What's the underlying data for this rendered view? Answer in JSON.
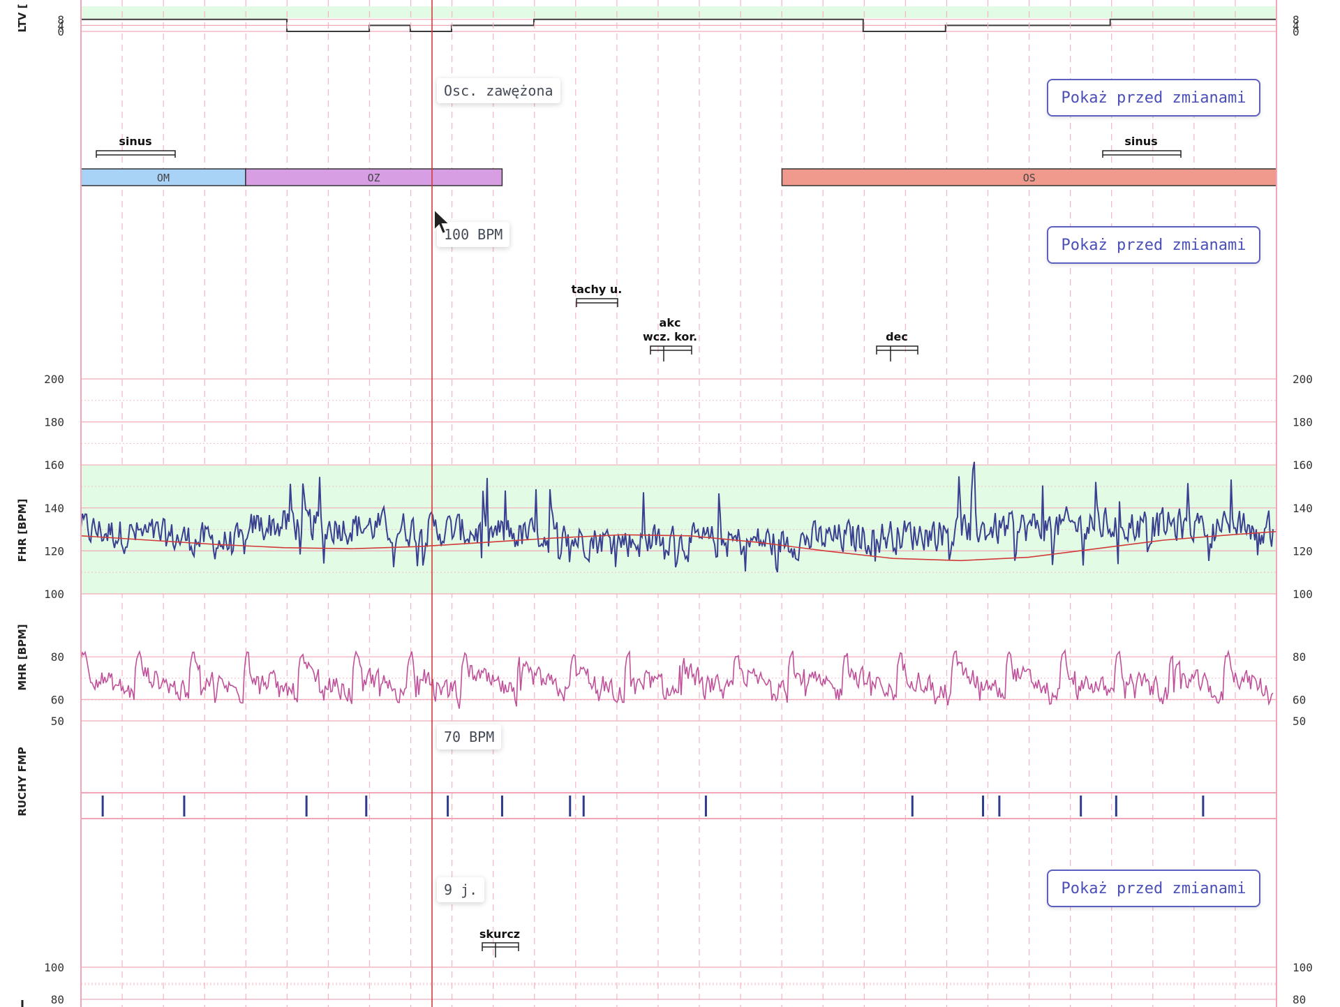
{
  "chart_data": {
    "type": "line",
    "panels": {
      "ltv": {
        "ylabel": "LTV [",
        "ticks": [
          0,
          4,
          8
        ],
        "normal_band": [
          4,
          8
        ],
        "steps": [
          [
            0,
            8
          ],
          [
            7.58,
            8
          ],
          [
            7.58,
            0
          ],
          [
            10.61,
            0
          ],
          [
            10.61,
            4
          ],
          [
            12.12,
            4
          ],
          [
            12.12,
            0
          ],
          [
            13.64,
            0
          ],
          [
            13.64,
            4
          ],
          [
            16.67,
            4
          ],
          [
            16.67,
            8
          ],
          [
            28.79,
            8
          ],
          [
            28.79,
            0
          ],
          [
            31.82,
            0
          ],
          [
            31.82,
            4
          ],
          [
            37.88,
            4
          ],
          [
            37.88,
            8
          ],
          [
            44,
            8
          ]
        ]
      },
      "fhr": {
        "ylabel": "FHR [BPM]",
        "ticks": [
          100,
          120,
          140,
          160,
          180,
          200
        ],
        "ylim": [
          100,
          200
        ],
        "normal_band": [
          100,
          160
        ],
        "baseline": [
          [
            0,
            127
          ],
          [
            3,
            125
          ],
          [
            6,
            123
          ],
          [
            9,
            121.5
          ],
          [
            12,
            121
          ],
          [
            15,
            122
          ],
          [
            18,
            124
          ],
          [
            21,
            126
          ],
          [
            24,
            127.5
          ],
          [
            27,
            127
          ],
          [
            30,
            124
          ],
          [
            33,
            120
          ],
          [
            36,
            116.5
          ],
          [
            39,
            115.5
          ],
          [
            42,
            117
          ],
          [
            45,
            121
          ],
          [
            48,
            125
          ],
          [
            51,
            127.5
          ],
          [
            53,
            129
          ]
        ],
        "series_color": "#3a3f8f",
        "baseline_color": "#d23a3a"
      },
      "mhr": {
        "ylabel": "MHR [BPM]",
        "ticks": [
          50,
          60,
          80
        ],
        "series_color": "#c0509a"
      },
      "fmp": {
        "ylabel": "RUCHY FMP",
        "marks": [
          0.8,
          3.8,
          8.3,
          10.5,
          13.5,
          15.5,
          18.0,
          18.5,
          23.0,
          30.6,
          33.2,
          33.8,
          36.8,
          38.1,
          41.3
        ]
      },
      "toco": {
        "ylabel": "",
        "ticks": [
          80,
          100
        ]
      }
    },
    "annotations": {
      "osc": {
        "label": "Osc. zawężona"
      },
      "bpm_fhr": {
        "label": "100 BPM"
      },
      "bpm_mhr": {
        "label": "70 BPM"
      },
      "units": {
        "label": "9 j."
      },
      "sinus": "sinus",
      "tachy": "tachy u.",
      "akc": "akc",
      "wcz": "wcz. kor.",
      "dec": "dec",
      "skurcz": "skurcz"
    },
    "segments": [
      {
        "label": "OM",
        "x0": 0,
        "x1": 6.06,
        "color": "#a8d3f7"
      },
      {
        "label": "OZ",
        "x0": 6.06,
        "x1": 15.5,
        "color": "#d79ee4"
      },
      {
        "label": "OS",
        "x0": 25.8,
        "x1": 44,
        "color": "#f09a8e"
      }
    ]
  },
  "buttons": {
    "show_before": "Pokaż przed zmianami"
  }
}
